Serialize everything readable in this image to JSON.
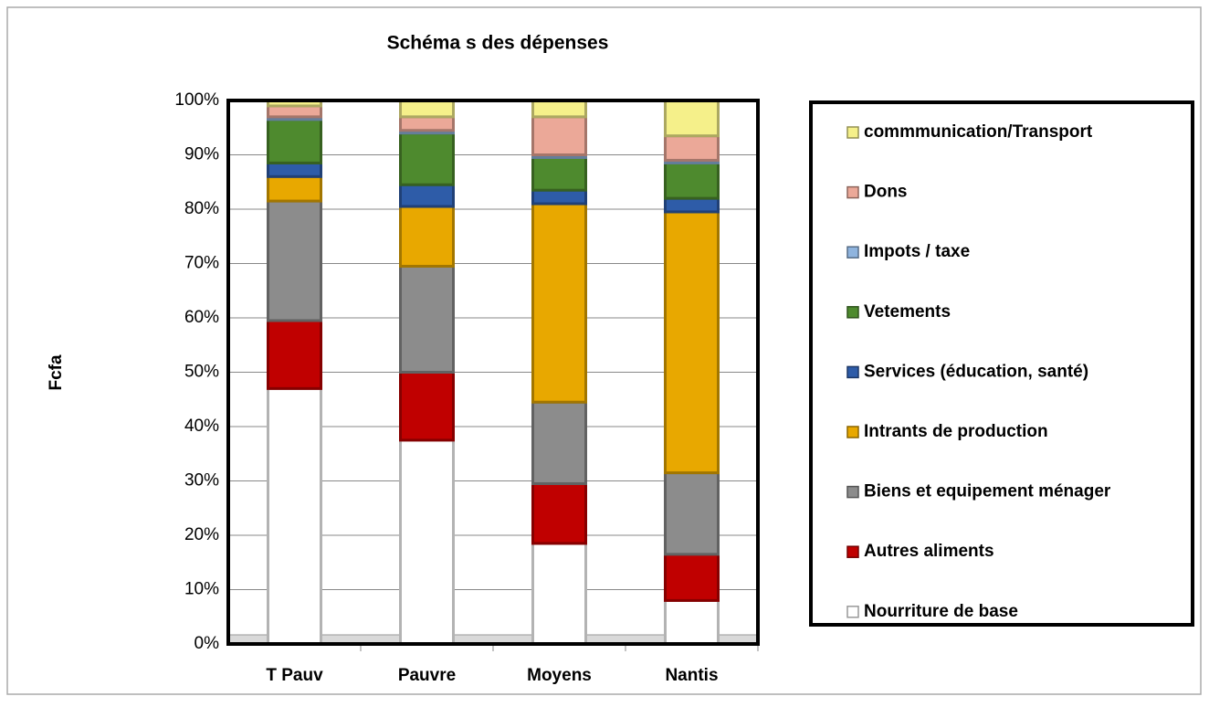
{
  "chart_data": {
    "type": "stacked_bar",
    "title": "Schéma s des dépenses",
    "y_label": "Fcfa",
    "categories": [
      "T Pauv",
      "Pauvre",
      "Moyens",
      "Nantis"
    ],
    "series": [
      {
        "name": "Nourriture de base",
        "color": "#ffffff",
        "values": [
          47,
          37.5,
          18.5,
          8
        ]
      },
      {
        "name": "Autres aliments",
        "color": "#c00000",
        "values": [
          12.5,
          12.5,
          11,
          8.5
        ]
      },
      {
        "name": "Biens et equipement ménager",
        "color": "#8c8c8c",
        "values": [
          22,
          19.5,
          15,
          15
        ]
      },
      {
        "name": "Intrants de production",
        "color": "#e8a800",
        "values": [
          4.5,
          11,
          36.5,
          48
        ]
      },
      {
        "name": "Services (éducation, santé)",
        "color": "#2e5ca8",
        "values": [
          2.5,
          4,
          2.5,
          2.5
        ]
      },
      {
        "name": "Vetements",
        "color": "#4e8a2e",
        "values": [
          8,
          9.5,
          6,
          6.5
        ]
      },
      {
        "name": "Impots / taxe",
        "color": "#8fb4de",
        "values": [
          0.5,
          0.5,
          0.5,
          0.5
        ]
      },
      {
        "name": "Dons",
        "color": "#eba898",
        "values": [
          2,
          2.5,
          7,
          4.5
        ]
      },
      {
        "name": "commmunication/Transport",
        "color": "#f5f08a",
        "values": [
          1,
          3,
          3,
          6.5
        ]
      }
    ],
    "ylim": [
      0,
      100
    ],
    "yticks": [
      {
        "value": 0,
        "label": "0%"
      },
      {
        "value": 10,
        "label": "10%"
      },
      {
        "value": 20,
        "label": "20%"
      },
      {
        "value": 30,
        "label": "30%"
      },
      {
        "value": 40,
        "label": "40%"
      },
      {
        "value": 50,
        "label": "50%"
      },
      {
        "value": 60,
        "label": "60%"
      },
      {
        "value": 70,
        "label": "70%"
      },
      {
        "value": 80,
        "label": "80%"
      },
      {
        "value": 90,
        "label": "90%"
      },
      {
        "value": 100,
        "label": "100%"
      }
    ],
    "grid": true,
    "legend": "right"
  }
}
